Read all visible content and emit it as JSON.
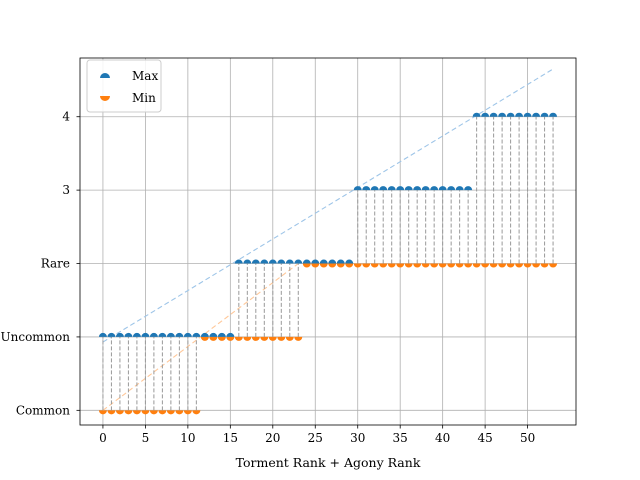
{
  "chart_data": {
    "type": "scatter",
    "title": "",
    "xlabel": "Torment Rank + Agony Rank",
    "ylabel": "",
    "xlim": [
      -2.7,
      55.7
    ],
    "ylim": [
      -0.2,
      4.8
    ],
    "xticks": [
      0,
      5,
      10,
      15,
      20,
      25,
      30,
      35,
      40,
      45,
      50
    ],
    "yticks": [
      {
        "value": 0,
        "label": "Common"
      },
      {
        "value": 1,
        "label": "Uncommon"
      },
      {
        "value": 2,
        "label": "Rare"
      },
      {
        "value": 3,
        "label": "3"
      },
      {
        "value": 4,
        "label": "4"
      }
    ],
    "grid": true,
    "legend": "top-left",
    "series": [
      {
        "name": "Max",
        "color": "#1f77b4",
        "marker": "top-half-circle",
        "segments": [
          {
            "from": 0,
            "to": 15,
            "y": 1
          },
          {
            "from": 16,
            "to": 29,
            "y": 2
          },
          {
            "from": 30,
            "to": 43,
            "y": 3
          },
          {
            "from": 44,
            "to": 53,
            "y": 4
          }
        ]
      },
      {
        "name": "Min",
        "color": "#ff7f0e",
        "marker": "bottom-half-circle",
        "segments": [
          {
            "from": 0,
            "to": 11,
            "y": 0
          },
          {
            "from": 12,
            "to": 23,
            "y": 1
          },
          {
            "from": 24,
            "to": 53,
            "y": 2
          }
        ]
      }
    ],
    "trend_lines": [
      {
        "series": "Max",
        "style": "dashed",
        "color": "#9ec5e8",
        "from": [
          0,
          0.93
        ],
        "to": [
          53,
          4.65
        ]
      },
      {
        "series": "Min",
        "style": "dashed",
        "color": "#ffc899",
        "from": [
          0,
          0.0
        ],
        "to": [
          23,
          2.0
        ]
      }
    ],
    "connectors": {
      "style": "dashed",
      "color": "#999999",
      "between": [
        "Min",
        "Max"
      ]
    }
  }
}
